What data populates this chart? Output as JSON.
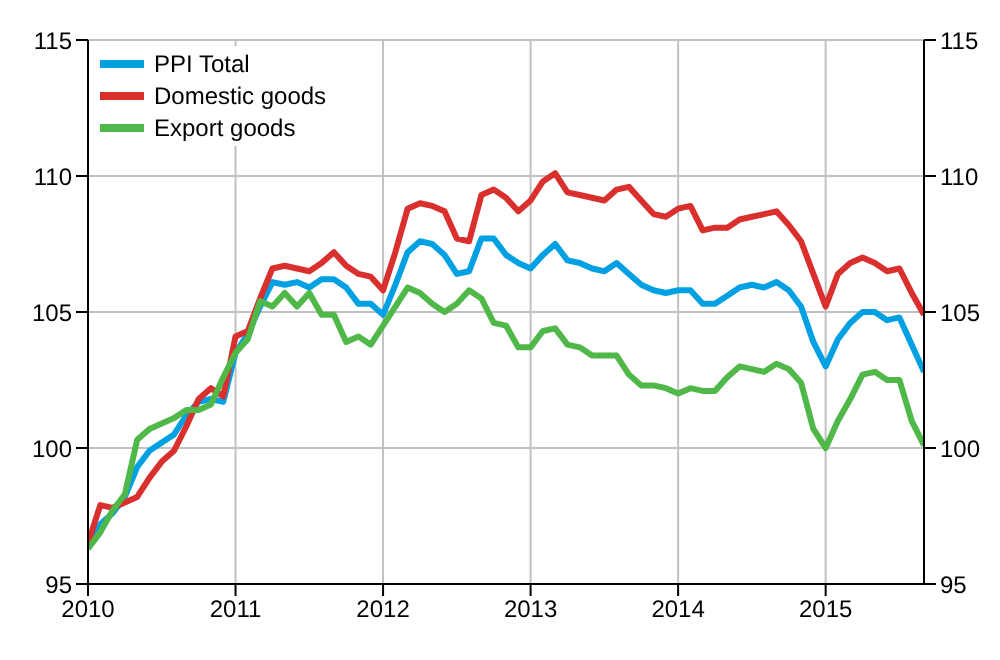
{
  "chart_data": {
    "type": "line",
    "x": [
      "2010-01",
      "2010-02",
      "2010-03",
      "2010-04",
      "2010-05",
      "2010-06",
      "2010-07",
      "2010-08",
      "2010-09",
      "2010-10",
      "2010-11",
      "2010-12",
      "2011-01",
      "2011-02",
      "2011-03",
      "2011-04",
      "2011-05",
      "2011-06",
      "2011-07",
      "2011-08",
      "2011-09",
      "2011-10",
      "2011-11",
      "2011-12",
      "2012-01",
      "2012-02",
      "2012-03",
      "2012-04",
      "2012-05",
      "2012-06",
      "2012-07",
      "2012-08",
      "2012-09",
      "2012-10",
      "2012-11",
      "2012-12",
      "2013-01",
      "2013-02",
      "2013-03",
      "2013-04",
      "2013-05",
      "2013-06",
      "2013-07",
      "2013-08",
      "2013-09",
      "2013-10",
      "2013-11",
      "2013-12",
      "2014-01",
      "2014-02",
      "2014-03",
      "2014-04",
      "2014-05",
      "2014-06",
      "2014-07",
      "2014-08",
      "2014-09",
      "2014-10",
      "2014-11",
      "2014-12",
      "2015-01",
      "2015-02",
      "2015-03",
      "2015-04",
      "2015-05",
      "2015-06",
      "2015-07",
      "2015-08",
      "2015-09"
    ],
    "series": [
      {
        "name": "PPI Total",
        "color": "#00a0e3",
        "values": [
          96.5,
          97.2,
          97.6,
          98.2,
          99.3,
          99.9,
          100.2,
          100.5,
          101.2,
          101.7,
          101.8,
          101.7,
          103.5,
          104.2,
          105.2,
          106.1,
          106.0,
          106.1,
          105.9,
          106.2,
          106.2,
          105.9,
          105.3,
          105.3,
          104.9,
          106.0,
          107.2,
          107.6,
          107.5,
          107.1,
          106.4,
          106.5,
          107.7,
          107.7,
          107.1,
          106.8,
          106.6,
          107.1,
          107.5,
          106.9,
          106.8,
          106.6,
          106.5,
          106.8,
          106.4,
          106.0,
          105.8,
          105.7,
          105.8,
          105.8,
          105.3,
          105.3,
          105.6,
          105.9,
          106.0,
          105.9,
          106.1,
          105.8,
          105.2,
          103.9,
          103.0,
          104.0,
          104.6,
          105.0,
          105.0,
          104.7,
          104.8,
          103.8,
          102.8
        ]
      },
      {
        "name": "Domestic goods",
        "color": "#d9302e",
        "values": [
          96.5,
          97.9,
          97.8,
          98.0,
          98.2,
          98.9,
          99.5,
          99.9,
          100.8,
          101.8,
          102.2,
          101.9,
          104.1,
          104.3,
          105.5,
          106.6,
          106.7,
          106.6,
          106.5,
          106.8,
          107.2,
          106.7,
          106.4,
          106.3,
          105.8,
          107.2,
          108.8,
          109.0,
          108.9,
          108.7,
          107.7,
          107.6,
          109.3,
          109.5,
          109.2,
          108.7,
          109.1,
          109.8,
          110.1,
          109.4,
          109.3,
          109.2,
          109.1,
          109.5,
          109.6,
          109.1,
          108.6,
          108.5,
          108.8,
          108.9,
          108.0,
          108.1,
          108.1,
          108.4,
          108.5,
          108.6,
          108.7,
          108.2,
          107.6,
          106.4,
          105.2,
          106.4,
          106.8,
          107.0,
          106.8,
          106.5,
          106.6,
          105.7,
          104.9
        ]
      },
      {
        "name": "Export goods",
        "color": "#50b848",
        "values": [
          96.3,
          96.9,
          97.7,
          98.3,
          100.3,
          100.7,
          100.9,
          101.1,
          101.4,
          101.4,
          101.6,
          102.6,
          103.5,
          104.0,
          105.4,
          105.2,
          105.7,
          105.2,
          105.7,
          104.9,
          104.9,
          103.9,
          104.1,
          103.8,
          104.5,
          105.2,
          105.9,
          105.7,
          105.3,
          105.0,
          105.3,
          105.8,
          105.5,
          104.6,
          104.5,
          103.7,
          103.7,
          104.3,
          104.4,
          103.8,
          103.7,
          103.4,
          103.4,
          103.4,
          102.7,
          102.3,
          102.3,
          102.2,
          102.0,
          102.2,
          102.1,
          102.1,
          102.6,
          103.0,
          102.9,
          102.8,
          103.1,
          102.9,
          102.4,
          100.7,
          100.0,
          101.0,
          101.8,
          102.7,
          102.8,
          102.5,
          102.5,
          101.0,
          100.1
        ]
      }
    ],
    "xlim": [
      "2010-01",
      "2015-09"
    ],
    "xticks": [
      "2010",
      "2011",
      "2012",
      "2013",
      "2014",
      "2015"
    ],
    "ylim": [
      95,
      115
    ],
    "yticks": [
      95,
      100,
      105,
      110,
      115
    ],
    "y2lim": [
      95,
      115
    ],
    "y2ticks": [
      95,
      100,
      105,
      110,
      115
    ],
    "grid": true,
    "legend": "top left",
    "marker": "none",
    "line_style": "solid"
  }
}
